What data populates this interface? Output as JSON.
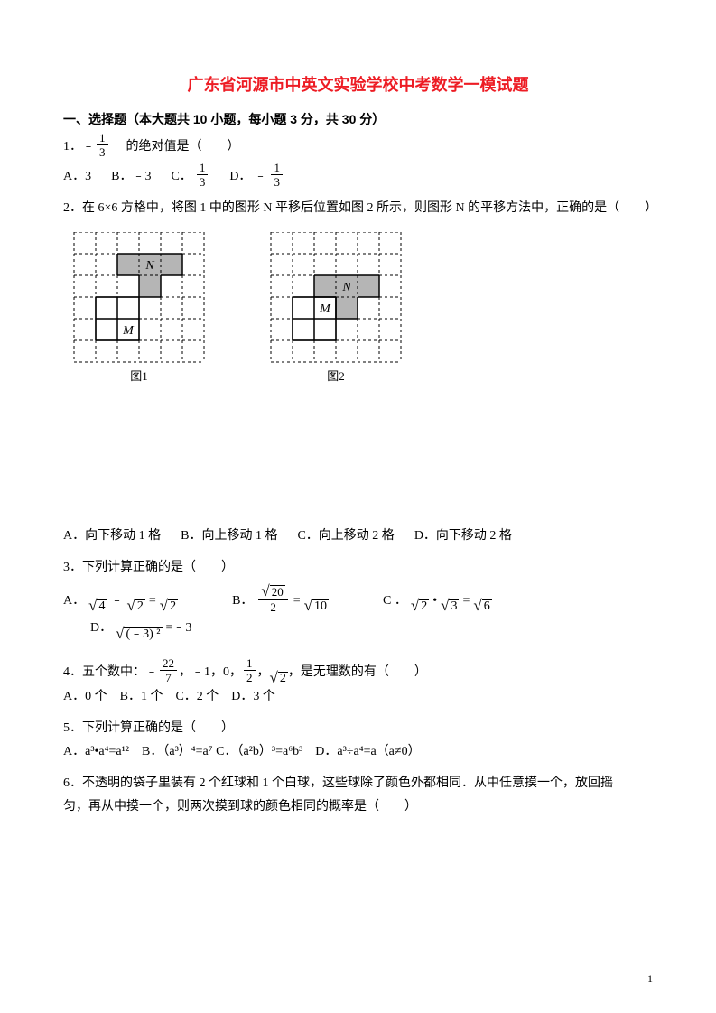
{
  "title": "广东省河源市中英文实验学校中考数学一模试题",
  "section1": "一、选择题（本大题共 10 小题，每小题 3 分，共 30 分）",
  "q1": {
    "num": "1．",
    "frac_num": "1",
    "frac_den": "3",
    "text": "的绝对值是（　　）",
    "A": "A．3",
    "B": "B．﹣3",
    "C": "C．",
    "D": "D．",
    "c_frac_num": "1",
    "c_frac_den": "3",
    "d_frac_num": "1",
    "d_frac_den": "3"
  },
  "q2": {
    "text": "2．在 6×6 方格中，将图 1 中的图形 N 平移后位置如图 2 所示，则图形 N 的平移方法中，正确的是（　　）",
    "caption1": "图1",
    "caption2": "图2",
    "A": "A．向下移动 1 格",
    "B": "B．向上移动 1 格",
    "C": "C．向上移动 2 格",
    "D": "D．向下移动 2 格"
  },
  "q3": {
    "text": "3．下列计算正确的是（　　）",
    "A": "A．",
    "B": "B．",
    "C": "C ．",
    "D": "D．"
  },
  "q4": {
    "prefix": "4．五个数中：﹣",
    "f1n": "22",
    "f1d": "7",
    "mid1": " ，﹣1，0，",
    "f2n": "1",
    "f2d": "2",
    "mid2": " ，",
    "sq": "2",
    "suffix": "  ，是无理数的有（　　）",
    "opts": "A．0 个　B．1 个　C．2 个　D．3 个"
  },
  "q5": {
    "text": "5．下列计算正确的是（　　）",
    "opts": "A．a³•a⁴=a¹²　B．（a³）⁴=a⁷ C．（a²b）³=a⁶b³　D．a³÷a⁴=a（a≠0）"
  },
  "q6": {
    "l1": "6．不透明的袋子里装有 2 个红球和 1 个白球，这些球除了颜色外都相同．从中任意摸一个，放回摇",
    "l2": "匀，再从中摸一个，则两次摸到球的颜色相同的概率是（　　）"
  },
  "pagenum": "1",
  "grid": {
    "cell": 24,
    "fill": "#b5b5b5",
    "stroke": "#000000",
    "dash": "3,3",
    "label_N": "N",
    "label_M": "M",
    "g1": {
      "N_cells": [
        [
          2,
          1
        ],
        [
          3,
          1
        ],
        [
          4,
          1
        ],
        [
          3,
          2
        ]
      ],
      "N_label_cell": [
        3,
        1
      ],
      "M_cells": [
        [
          1,
          3
        ],
        [
          2,
          3
        ],
        [
          1,
          4
        ],
        [
          2,
          4
        ]
      ],
      "M_label_cell": [
        2,
        4
      ]
    },
    "g2": {
      "N_cells": [
        [
          2,
          2
        ],
        [
          3,
          2
        ],
        [
          4,
          2
        ],
        [
          3,
          3
        ]
      ],
      "N_label_cell": [
        3,
        2
      ],
      "M_cells": [
        [
          1,
          3
        ],
        [
          2,
          3
        ],
        [
          1,
          4
        ],
        [
          2,
          4
        ]
      ],
      "M_label_cell": [
        2,
        3
      ]
    }
  }
}
